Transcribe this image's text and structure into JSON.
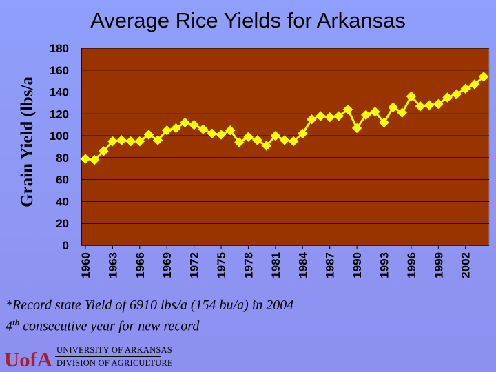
{
  "title": "Average Rice Yields for Arkansas",
  "notes": {
    "line1": "*Record state Yield of 6910 lbs/a (154 bu/a) in 2004",
    "line2_prefix": "4",
    "line2_sup": "th",
    "line2_suffix": " consecutive year for new record"
  },
  "logo": {
    "mark": "UofA",
    "line1": "UNIVERSITY OF ARKANSAS",
    "line2": "DIVISION OF AGRICULTURE"
  },
  "colors": {
    "plot_bg": "#993300",
    "marker": "#ffff00",
    "logo_red": "#9d2235"
  },
  "chart_data": {
    "type": "line",
    "title": "Average Rice Yields for Arkansas",
    "ylabel": "Grain Yield (lbs/a",
    "xlabel": "",
    "ylim": [
      0,
      180
    ],
    "yticks": [
      0,
      20,
      40,
      60,
      80,
      100,
      120,
      140,
      160,
      180
    ],
    "xlim": [
      1960,
      2004
    ],
    "xticks": [
      "1960",
      "1963",
      "1966",
      "1969",
      "1972",
      "1975",
      "1978",
      "1981",
      "1984",
      "1987",
      "1990",
      "1993",
      "1996",
      "1999",
      "2002"
    ],
    "grid": "horizontal",
    "marker": "diamond",
    "series": [
      {
        "name": "",
        "x": [
          1960,
          1961,
          1962,
          1963,
          1964,
          1965,
          1966,
          1967,
          1968,
          1969,
          1970,
          1971,
          1972,
          1973,
          1974,
          1975,
          1976,
          1977,
          1978,
          1979,
          1980,
          1981,
          1982,
          1983,
          1984,
          1985,
          1986,
          1987,
          1988,
          1989,
          1990,
          1991,
          1992,
          1993,
          1994,
          1995,
          1996,
          1997,
          1998,
          1999,
          2000,
          2001,
          2002,
          2003,
          2004
        ],
        "values": [
          79,
          78,
          86,
          95,
          96,
          95,
          95,
          101,
          96,
          105,
          107,
          112,
          110,
          106,
          102,
          101,
          105,
          94,
          99,
          96,
          91,
          100,
          96,
          95,
          102,
          115,
          118,
          117,
          118,
          124,
          107,
          119,
          122,
          112,
          126,
          121,
          136,
          127,
          128,
          129,
          135,
          138,
          143,
          147,
          154
        ]
      }
    ]
  }
}
